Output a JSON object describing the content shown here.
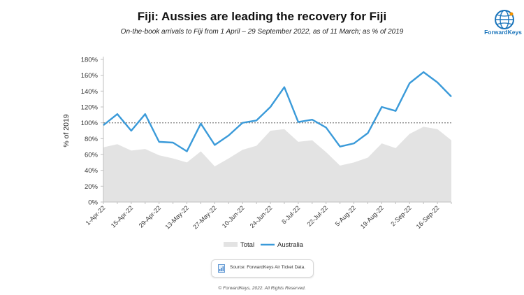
{
  "title": "Fiji: Aussies are leading the recovery for Fiji",
  "subtitle": "On-the-book arrivals to Fiji from 1 April – 29 September 2022, as of 11 March; as % of 2019",
  "logo": {
    "name": "ForwardKeys",
    "color": "#1b75bb"
  },
  "source": {
    "text": "Source: ForwardKeys Air Ticket Data.",
    "icon": "document-chart-icon"
  },
  "copyright": "© ForwardKeys, 2022. All Rights Reserved.",
  "colors": {
    "australia": "#3a9ad9",
    "total": "#e3e3e3",
    "reference": "#888888",
    "axis": "#bfbfbf"
  },
  "chart_data": {
    "type": "area",
    "title": "Fiji: Aussies are leading the recovery for Fiji",
    "xlabel": "",
    "ylabel": "% of 2019",
    "ylim": [
      0,
      180
    ],
    "yticks": [
      0,
      20,
      40,
      60,
      80,
      100,
      120,
      140,
      160,
      180
    ],
    "ytick_labels": [
      "0%",
      "20%",
      "40%",
      "60%",
      "80%",
      "100%",
      "120%",
      "140%",
      "160%",
      "180%"
    ],
    "x": [
      "1-Apr-22",
      "8-Apr-22",
      "15-Apr-22",
      "22-Apr-22",
      "29-Apr-22",
      "6-May-22",
      "13-May-22",
      "20-May-22",
      "27-May-22",
      "3-Jun-22",
      "10-Jun-22",
      "17-Jun-22",
      "24-Jun-22",
      "1-Jul-22",
      "8-Jul-22",
      "15-Jul-22",
      "22-Jul-22",
      "29-Jul-22",
      "5-Aug-22",
      "12-Aug-22",
      "19-Aug-22",
      "26-Aug-22",
      "2-Sep-22",
      "9-Sep-22",
      "16-Sep-22",
      "23-Sep-22"
    ],
    "xtick_labels": [
      "1-Apr-22",
      "15-Apr-22",
      "29-Apr-22",
      "13-May-22",
      "27-May-22",
      "10-Jun-22",
      "24-Jun-22",
      "8-Jul-22",
      "22-Jul-22",
      "5-Aug-22",
      "19-Aug-22",
      "2-Sep-22",
      "16-Sep-22"
    ],
    "series": [
      {
        "name": "Total",
        "kind": "area",
        "values": [
          69,
          73,
          65,
          67,
          59,
          55,
          50,
          64,
          45,
          55,
          66,
          71,
          90,
          92,
          76,
          78,
          63,
          46,
          50,
          56,
          74,
          68,
          86,
          95,
          92,
          78
        ]
      },
      {
        "name": "Australia",
        "kind": "line",
        "values": [
          97,
          111,
          90,
          111,
          76,
          75,
          64,
          99,
          72,
          84,
          100,
          103,
          120,
          145,
          101,
          104,
          94,
          70,
          74,
          87,
          120,
          115,
          150,
          164,
          151,
          133
        ]
      }
    ],
    "reference_line": 100,
    "legend": "bottom-center",
    "grid": false
  }
}
